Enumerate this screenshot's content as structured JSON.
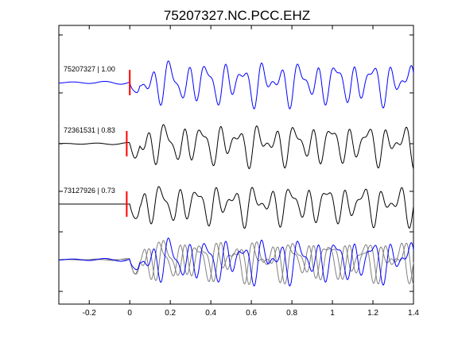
{
  "chart_data": {
    "type": "line",
    "title": "75207327.NC.PCC.EHZ",
    "xlabel": "",
    "ylabel": "",
    "xlim": [
      -0.35,
      1.4
    ],
    "xticks": [
      -0.2,
      0,
      0.2,
      0.4,
      0.6,
      0.8,
      1,
      1.2,
      1.4
    ],
    "xtick_labels": [
      "-0.2",
      "0",
      "0.2",
      "0.4",
      "0.6",
      "0.8",
      "1",
      "1.2",
      "1.4"
    ],
    "grid": false,
    "pick_time": 0,
    "colors": {
      "master": "#0000ff",
      "matched": "#000000",
      "overlay_matched": "#808080",
      "pick": "#ff0000",
      "axis": "#000000"
    },
    "traces": [
      {
        "event_id": "75207327",
        "label": "75207327 | 1.00",
        "correlation": 1.0,
        "color": "#0000ff",
        "pick_time": 0.0
      },
      {
        "event_id": "72361531",
        "label": "72361531 | 0.83",
        "correlation": 0.83,
        "color": "#000000",
        "pick_time": -0.015
      },
      {
        "event_id": "73127926",
        "label": "73127926 | 0.73",
        "correlation": 0.73,
        "color": "#000000",
        "pick_time": -0.015
      }
    ],
    "overlay": {
      "description": "stacked overlay of all traces",
      "colors": [
        "#808080",
        "#808080",
        "#0000ff"
      ]
    }
  }
}
